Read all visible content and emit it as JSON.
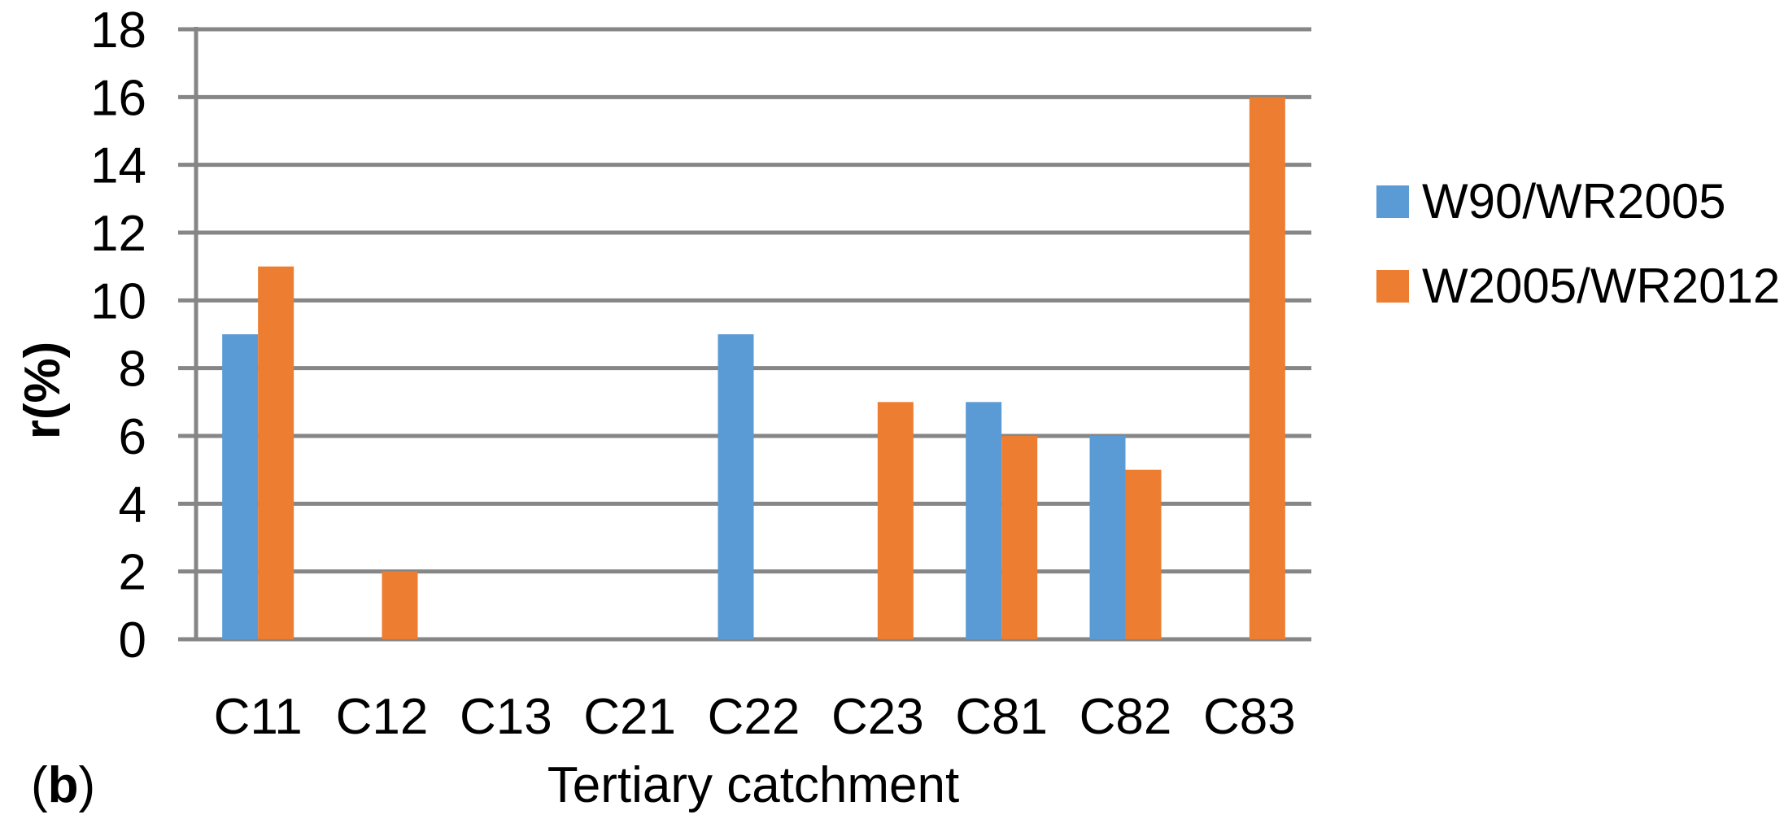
{
  "figure": {
    "background": "#ffffff",
    "panel_label": {
      "open": "(",
      "letter": "b",
      "close": ")"
    }
  },
  "chart_data": {
    "type": "bar",
    "title": "",
    "xlabel": "Tertiary catchment",
    "ylabel": "r(%)",
    "categories": [
      "C11",
      "C12",
      "C13",
      "C21",
      "C22",
      "C23",
      "C81",
      "C82",
      "C83"
    ],
    "series": [
      {
        "name": "W90/WR2005",
        "color": "#5B9BD5",
        "values": [
          9,
          0,
          0,
          0,
          9,
          0,
          7,
          6,
          0
        ]
      },
      {
        "name": "W2005/WR2012",
        "color": "#ED7D31",
        "values": [
          11,
          2,
          0,
          0,
          0,
          7,
          6,
          5,
          16
        ]
      }
    ],
    "ylim": [
      0,
      18
    ],
    "yticks": [
      0,
      2,
      4,
      6,
      8,
      10,
      12,
      14,
      16,
      18
    ],
    "grid": true,
    "gridline_color": "#868686",
    "axis_color": "#868686",
    "text_color": "#000000",
    "legend_position": "right"
  }
}
